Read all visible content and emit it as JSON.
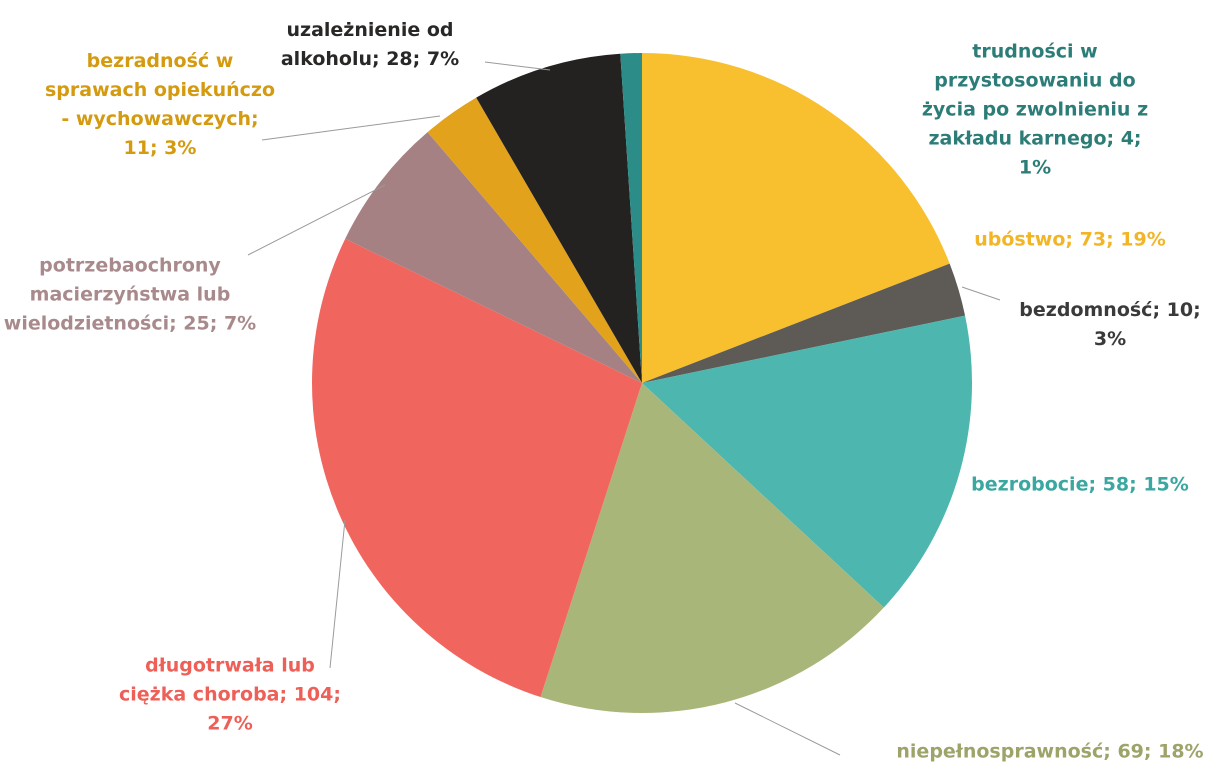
{
  "chart_data": {
    "type": "pie",
    "categories": [
      "ubóstwo; 73; 19%",
      "bezdomność; 10; 3%",
      "bezrobocie; 58; 15%",
      "niepełnosprawność; 69; 18%",
      "długotrwała lub ciężka choroba; 104; 27%",
      "potrzebaochrony macierzyństwa lub wielodzietności; 25; 7%",
      "bezradność w sprawach opiekuńczo - wychowawczych; 11; 3%",
      "uzależnienie od alkoholu; 28; 7%",
      "trudności w przystosowaniu do życia po zwolnieniu z zakładu karnego; 4; 1%"
    ],
    "values": [
      73,
      10,
      58,
      69,
      104,
      25,
      11,
      28,
      4
    ],
    "colors": [
      "#f8bf2e",
      "#5e5a55",
      "#4db6ae",
      "#a9b67a",
      "#f0665f",
      "#a58183",
      "#e2a21c",
      "#242220",
      "#2c8c87"
    ],
    "label_colors": [
      "#f2b526",
      "#3c3a38",
      "#3aa7a0",
      "#9ea36a",
      "#ee5f57",
      "#a98a8c",
      "#d49a10",
      "#2a2826",
      "#2c7d78"
    ]
  }
}
